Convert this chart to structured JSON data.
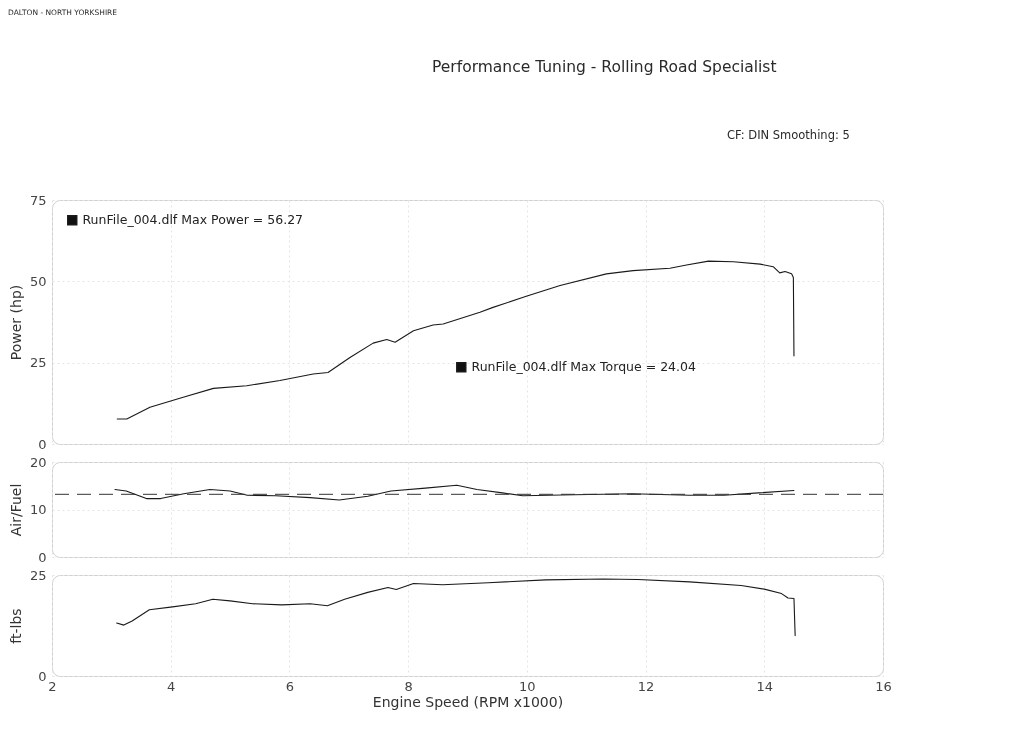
{
  "chart_data": [
    {
      "type": "line",
      "ylabel": "Power (hp)",
      "xlim": [
        2,
        16
      ],
      "xticks": [
        2,
        4,
        6,
        8,
        10,
        12,
        14,
        16
      ],
      "ylim": [
        0,
        75
      ],
      "yticks": [
        0,
        25,
        50,
        75
      ],
      "grid": true,
      "tick_labels": "y",
      "legend": "top left",
      "annotations": [
        "DALTON - NORTH YORKSHIRE",
        "Performance Tuning - Rolling Road Specialist",
        "CF: DIN Smoothing: 5"
      ],
      "series": [
        {
          "name": "RunFile_004.dlf Max Power = 56.27",
          "color": "#1a1a1a",
          "x": [
            3.1,
            3.26,
            3.65,
            4.21,
            4.72,
            5.28,
            5.84,
            6.4,
            6.65,
            7.02,
            7.41,
            7.64,
            7.78,
            8.09,
            8.42,
            8.59,
            9.21,
            9.43,
            9.99,
            10.56,
            11.34,
            11.79,
            12.41,
            12.69,
            13.06,
            13.48,
            13.93,
            14.15,
            14.26,
            14.35,
            14.46,
            14.49,
            14.5
          ],
          "values": [
            7.7,
            7.7,
            11.3,
            14.4,
            17.1,
            17.9,
            19.5,
            21.5,
            22.0,
            26.6,
            31.0,
            32.1,
            31.3,
            34.8,
            36.6,
            36.9,
            40.5,
            42.0,
            45.4,
            48.7,
            52.3,
            53.3,
            54.0,
            55.0,
            56.2,
            56.0,
            55.3,
            54.5,
            52.6,
            53.0,
            52.3,
            51.2,
            27.1
          ]
        }
      ]
    },
    {
      "type": "line",
      "ylabel": "Air/Fuel",
      "xlim": [
        2,
        16
      ],
      "xticks": [
        2,
        4,
        6,
        8,
        10,
        12,
        14,
        16
      ],
      "ylim": [
        0,
        20
      ],
      "yticks": [
        0,
        10,
        20
      ],
      "grid": true,
      "tick_labels": "y",
      "ref_lines": [
        {
          "axis": "y",
          "value": 13.2,
          "color": "#333333",
          "line_style": "dashed"
        }
      ],
      "series": [
        {
          "color": "#1a1a1a",
          "x": [
            3.06,
            3.25,
            3.59,
            3.83,
            4.22,
            4.66,
            5.0,
            5.29,
            5.77,
            6.35,
            6.84,
            7.32,
            7.71,
            8.29,
            8.82,
            9.16,
            9.59,
            9.93,
            10.8,
            11.77,
            12.74,
            13.32,
            13.9,
            14.5
          ],
          "values": [
            14.2,
            13.9,
            12.3,
            12.3,
            13.3,
            14.2,
            13.9,
            13.0,
            12.9,
            12.5,
            12.0,
            12.8,
            13.9,
            14.5,
            15.1,
            14.2,
            13.5,
            12.9,
            13.1,
            13.3,
            13.0,
            13.0,
            13.5,
            14.0
          ]
        }
      ]
    },
    {
      "type": "line",
      "ylabel": "ft-lbs",
      "xlabel": "Engine Speed (RPM x1000)",
      "xlim": [
        2,
        16
      ],
      "xticks": [
        2,
        4,
        6,
        8,
        10,
        12,
        14,
        16
      ],
      "ylim": [
        0,
        25
      ],
      "yticks": [
        0,
        25
      ],
      "grid": true,
      "legend": "top",
      "series": [
        {
          "name": "RunFile_004.dlf Max Torque = 24.04",
          "color": "#1a1a1a",
          "x": [
            3.09,
            3.21,
            3.35,
            3.64,
            4.03,
            4.42,
            4.71,
            5.0,
            5.38,
            5.87,
            6.35,
            6.64,
            6.93,
            7.32,
            7.66,
            7.8,
            8.09,
            8.58,
            9.35,
            10.32,
            11.29,
            11.87,
            12.74,
            13.61,
            14.0,
            14.29,
            14.4,
            14.5,
            14.52
          ],
          "values": [
            13.1,
            12.6,
            13.6,
            16.4,
            17.1,
            17.9,
            19.0,
            18.6,
            17.9,
            17.6,
            17.9,
            17.4,
            19.0,
            20.7,
            21.9,
            21.4,
            22.9,
            22.6,
            23.1,
            23.8,
            24.0,
            23.9,
            23.3,
            22.4,
            21.5,
            20.4,
            19.3,
            19.2,
            10.0
          ]
        }
      ]
    }
  ]
}
